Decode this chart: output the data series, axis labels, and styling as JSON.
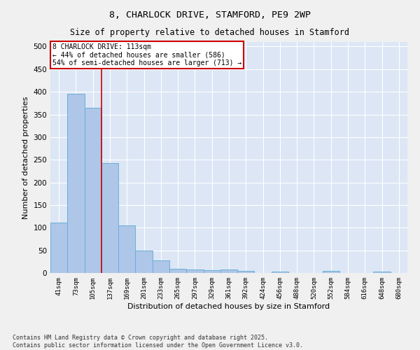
{
  "title1": "8, CHARLOCK DRIVE, STAMFORD, PE9 2WP",
  "title2": "Size of property relative to detached houses in Stamford",
  "xlabel": "Distribution of detached houses by size in Stamford",
  "ylabel": "Number of detached properties",
  "categories": [
    "41sqm",
    "73sqm",
    "105sqm",
    "137sqm",
    "169sqm",
    "201sqm",
    "233sqm",
    "265sqm",
    "297sqm",
    "329sqm",
    "361sqm",
    "392sqm",
    "424sqm",
    "456sqm",
    "488sqm",
    "520sqm",
    "552sqm",
    "584sqm",
    "616sqm",
    "648sqm",
    "680sqm"
  ],
  "values": [
    112,
    395,
    365,
    242,
    105,
    50,
    28,
    10,
    8,
    6,
    8,
    5,
    0,
    3,
    0,
    0,
    5,
    0,
    0,
    3,
    0
  ],
  "bar_color": "#aec6e8",
  "bar_edge_color": "#6aafd6",
  "fig_background_color": "#f0f0f0",
  "plot_background_color": "#dce6f5",
  "grid_color": "#ffffff",
  "red_line_x": 2.5,
  "annotation_text": "8 CHARLOCK DRIVE: 113sqm\n← 44% of detached houses are smaller (586)\n54% of semi-detached houses are larger (713) →",
  "annotation_box_facecolor": "#ffffff",
  "annotation_box_edgecolor": "#cc0000",
  "footnote": "Contains HM Land Registry data © Crown copyright and database right 2025.\nContains public sector information licensed under the Open Government Licence v3.0.",
  "ylim": [
    0,
    510
  ],
  "yticks": [
    0,
    50,
    100,
    150,
    200,
    250,
    300,
    350,
    400,
    450,
    500
  ]
}
